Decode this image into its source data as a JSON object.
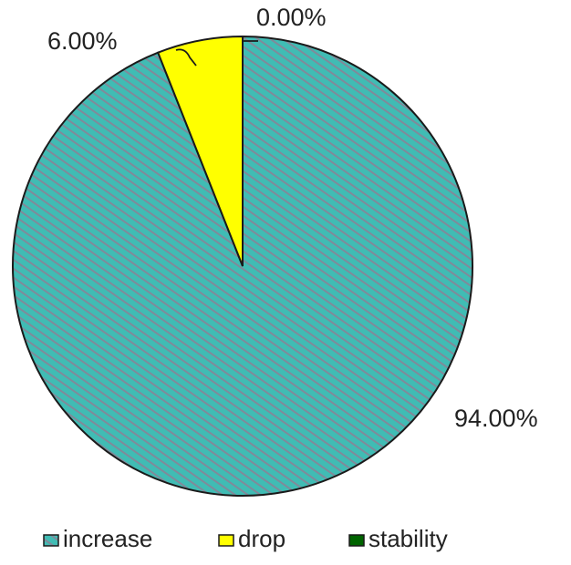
{
  "chart_data": {
    "type": "pie",
    "title": "",
    "slices": [
      {
        "label": "increase",
        "value": 94.0,
        "display": "94.00%",
        "color": "#40bcb4",
        "pattern": "diagonal-hatch"
      },
      {
        "label": "drop",
        "value": 6.0,
        "display": "6.00%",
        "color": "#ffff00",
        "pattern": "solid"
      },
      {
        "label": "stability",
        "value": 0.0,
        "display": "0.00%",
        "color": "#006400",
        "pattern": "solid"
      }
    ],
    "legend_position": "bottom"
  },
  "legend": {
    "items": [
      {
        "label": "increase",
        "color": "#40bcb4"
      },
      {
        "label": "drop",
        "color": "#ffff00"
      },
      {
        "label": "stability",
        "color": "#006400"
      }
    ]
  }
}
